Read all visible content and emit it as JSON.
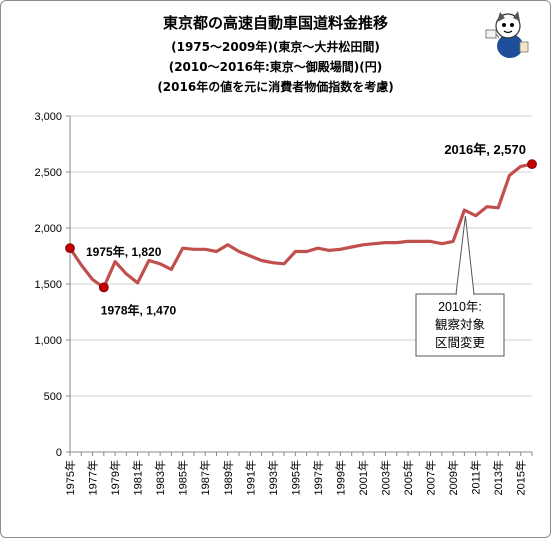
{
  "chart_data": {
    "type": "line",
    "title": "東京都の高速自動車国道料金推移",
    "subtitle_lines": [
      "(1975～2009年)(東京～大井松田間)",
      "(2010～2016年:東京～御殿場間)(円)",
      "(2016年の値を元に消費者物価指数を考慮)"
    ],
    "xlabel": "",
    "ylabel": "",
    "ylim": [
      0,
      3000
    ],
    "yticks": [
      0,
      500,
      1000,
      1500,
      2000,
      2500,
      3000
    ],
    "ytick_labels": [
      "0",
      "500",
      "1,000",
      "1,500",
      "2,000",
      "2,500",
      "3,000"
    ],
    "x": [
      1975,
      1976,
      1977,
      1978,
      1979,
      1980,
      1981,
      1982,
      1983,
      1984,
      1985,
      1986,
      1987,
      1988,
      1989,
      1990,
      1991,
      1992,
      1993,
      1994,
      1995,
      1996,
      1997,
      1998,
      1999,
      2000,
      2001,
      2002,
      2003,
      2004,
      2005,
      2006,
      2007,
      2008,
      2009,
      2010,
      2011,
      2012,
      2013,
      2014,
      2015,
      2016
    ],
    "xtick_labels": [
      "1975年",
      "1977年",
      "1979年",
      "1981年",
      "1983年",
      "1985年",
      "1987年",
      "1989年",
      "1991年",
      "1993年",
      "1995年",
      "1997年",
      "1999年",
      "2001年",
      "2003年",
      "2005年",
      "2007年",
      "2009年",
      "2011年",
      "2013年",
      "2015年"
    ],
    "xtick_years": [
      1975,
      1977,
      1979,
      1981,
      1983,
      1985,
      1987,
      1989,
      1991,
      1993,
      1995,
      1997,
      1999,
      2001,
      2003,
      2005,
      2007,
      2009,
      2011,
      2013,
      2015
    ],
    "series": [
      {
        "name": "",
        "values": [
          1820,
          1670,
          1540,
          1470,
          1700,
          1590,
          1510,
          1710,
          1680,
          1630,
          1820,
          1810,
          1810,
          1790,
          1850,
          1790,
          1750,
          1710,
          1690,
          1680,
          1790,
          1790,
          1820,
          1800,
          1810,
          1830,
          1850,
          1860,
          1870,
          1870,
          1880,
          1880,
          1880,
          1860,
          1880,
          2160,
          2110,
          2190,
          2180,
          2470,
          2550,
          2570
        ]
      }
    ],
    "grid": true,
    "legend": "none",
    "line_color": "#c0504d",
    "marker_color": "#c00000",
    "annotations": [
      {
        "id": "a1975",
        "label": "1975年, 1,820",
        "x": 1975,
        "y": 1820
      },
      {
        "id": "a1978",
        "label": "1978年, 1,470",
        "x": 1978,
        "y": 1470
      },
      {
        "id": "a2016",
        "label": "2016年, 2,570",
        "x": 2016,
        "y": 2570
      }
    ],
    "callout": {
      "lines": [
        "2010年:",
        "観察対象",
        "区間変更"
      ],
      "x": 2010,
      "y": 2160
    }
  }
}
